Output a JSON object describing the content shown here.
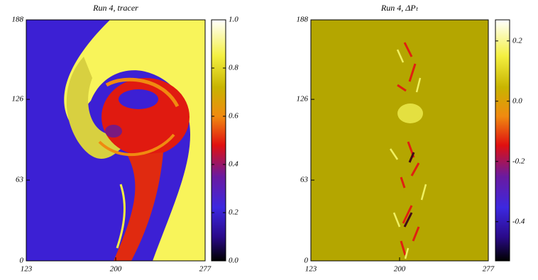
{
  "chart_data": [
    {
      "type": "heatmap",
      "title": "Run 4, tracer",
      "xlim": [
        123,
        277
      ],
      "xticks": [
        123,
        200,
        277
      ],
      "ylim": [
        0,
        188
      ],
      "yticks": [
        0,
        63,
        126,
        188
      ],
      "colorbar": {
        "lim": [
          0,
          1
        ],
        "ticks": [
          {
            "value": 0,
            "label": "0.0"
          },
          0.2,
          0.4,
          0.6,
          0.8,
          {
            "value": 1,
            "label": "1.0"
          }
        ]
      }
    },
    {
      "type": "heatmap",
      "title": "Run 4, ΔPₜ",
      "xlim": [
        123,
        277
      ],
      "xticks": [
        123,
        200,
        277
      ],
      "ylim": [
        0,
        188
      ],
      "yticks": [
        0,
        63,
        126,
        188
      ],
      "colorbar": {
        "lim": [
          -0.53,
          0.27
        ],
        "ticks": [
          -0.4,
          -0.2,
          {
            "value": 0,
            "label": "0.0"
          },
          0.2
        ]
      }
    }
  ]
}
